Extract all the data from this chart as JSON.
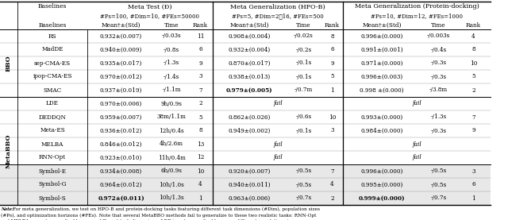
{
  "col_groups": [
    {
      "label": "Meta Test (Đ)",
      "sub": "#Ps=100, #Dim=10, #FEs=50000",
      "cols": [
        "Mean†±(Std)",
        "Time",
        "Rank"
      ]
    },
    {
      "label": "Meta Generalization (HPO-B)",
      "sub": "#Ps=5, #Dim=2∰16, #FEs=500",
      "cols": [
        "Mean†±(Std)",
        "Time",
        "Rank"
      ]
    },
    {
      "label": "Meta Generalization (Protein-docking)",
      "sub": "#Ps=10, #Dim=12, #FEs=1000",
      "cols": [
        "Mean†±(Std)",
        "Time",
        "Rank"
      ]
    }
  ],
  "row_groups": [
    {
      "label": "BBO",
      "rows": [
        {
          "name": "RS",
          "d_mean": "0.932±(0.007)",
          "d_time": "-/0.03s",
          "d_rank": "11",
          "h_mean": "0.908±(0.004)",
          "h_time": "-/0.02s",
          "h_rank": "8",
          "p_mean": "0.996±(0.000)",
          "p_time": "-/0.003s",
          "p_rank": "4"
        },
        {
          "name": "MadDE",
          "d_mean": "0.940±(0.009)",
          "d_time": "-/0.8s",
          "d_rank": "6",
          "h_mean": "0.932±(0.004)",
          "h_time": "-/0.2s",
          "h_rank": "6",
          "p_mean": "0.991±(0.001)",
          "p_time": "-/0.4s",
          "p_rank": "8"
        },
        {
          "name": "sep-CMA-ES",
          "d_mean": "0.935±(0.017)",
          "d_time": "-/1.3s",
          "d_rank": "9",
          "h_mean": "0.870±(0.017)",
          "h_time": "-/0.1s",
          "h_rank": "9",
          "p_mean": "0.971±(0.000)",
          "p_time": "-/0.3s",
          "p_rank": "10"
        },
        {
          "name": "ipop-CMA-ES",
          "d_mean": "0.970±(0.012)",
          "d_time": "-/1.4s",
          "d_rank": "3",
          "h_mean": "0.938±(0.013)",
          "h_time": "-/0.1s",
          "h_rank": "5",
          "p_mean": "0.996±(0.003)",
          "p_time": "-/0.3s",
          "p_rank": "5"
        },
        {
          "name": "SMAC",
          "d_mean": "0.937±(0.019)",
          "d_time": "-/1.1m",
          "d_rank": "7",
          "h_mean": "0.979±(0.005)",
          "h_time": "-/0.7m",
          "h_rank": "1",
          "p_mean": "0.998 ±(0.000)",
          "p_time": "-/3.8m",
          "p_rank": "2",
          "h_bold": true
        }
      ]
    },
    {
      "label": "MetaBBO",
      "rows": [
        {
          "name": "LDE",
          "d_mean": "0.970±(0.006)",
          "d_time": "9h/0.9s",
          "d_rank": "2",
          "h_mean": "fail",
          "h_time": "",
          "h_rank": "",
          "p_mean": "fail",
          "p_time": "",
          "p_rank": ""
        },
        {
          "name": "DEDDQN",
          "d_mean": "0.959±(0.007)",
          "d_time": "38m/1.1m",
          "d_rank": "5",
          "h_mean": "0.862±(0.026)",
          "h_time": "-/0.6s",
          "h_rank": "10",
          "p_mean": "0.993±(0.000)",
          "p_time": "-/1.3s",
          "p_rank": "7"
        },
        {
          "name": "Meta-ES",
          "d_mean": "0.936±(0.012)",
          "d_time": "12h/0.4s",
          "d_rank": "8",
          "h_mean": "0.949±(0.002)",
          "h_time": "-/0.1s",
          "h_rank": "3",
          "p_mean": "0.984±(0.000)",
          "p_time": "-/0.3s",
          "p_rank": "9"
        },
        {
          "name": "MELBA",
          "d_mean": "0.846±(0.012)",
          "d_time": "4h/2.6m",
          "d_rank": "13",
          "h_mean": "fail",
          "h_time": "",
          "h_rank": "",
          "p_mean": "fail",
          "p_time": "",
          "p_rank": ""
        },
        {
          "name": "RNN-Opt",
          "d_mean": "0.923±(0.010)",
          "d_time": "11h/0.4m",
          "d_rank": "12",
          "h_mean": "fail",
          "h_time": "",
          "h_rank": "",
          "p_mean": "fail",
          "p_time": "",
          "p_rank": ""
        },
        {
          "name": "Symbol-E",
          "d_mean": "0.934±(0.008)",
          "d_time": "6h/0.9s",
          "d_rank": "10",
          "h_mean": "0.920±(0.007)",
          "h_time": "-/0.5s",
          "h_rank": "7",
          "p_mean": "0.996±(0.000)",
          "p_time": "-/0.5s",
          "p_rank": "3",
          "is_symbol": true
        },
        {
          "name": "Symbol-G",
          "d_mean": "0.964±(0.012)",
          "d_time": "10h/1.0s",
          "d_rank": "4",
          "h_mean": "0.940±(0.011)",
          "h_time": "-/0.5s",
          "h_rank": "4",
          "p_mean": "0.995±(0.000)",
          "p_time": "-/0.5s",
          "p_rank": "6",
          "is_symbol": true
        },
        {
          "name": "Symbol-S",
          "d_mean": "0.972±(0.011)",
          "d_time": "10h/1.3s",
          "d_rank": "1",
          "h_mean": "0.963±(0.006)",
          "h_time": "-/0.7s",
          "h_rank": "2",
          "p_mean": "0.999±(0.000)",
          "p_time": "-/0.7s",
          "p_rank": "1",
          "is_symbol": true,
          "d_bold": true,
          "p_bold": true
        }
      ]
    }
  ],
  "note": "Note: For meta generalization, we test on HPO-B and protein-docking tasks featuring different task dimensions (#Dim), population sizes\n(#Ps), and optimization horizons (#FEs). Note that several MetaBBO methods fail to generalize to these two realistic tasks: RNN-Opt\nand MELBA are not generalizable across different task dimensions; LDE is not generalizable across different population sizes.",
  "bg_color": "#ffffff",
  "symbol_bg": "#e8e8e8"
}
